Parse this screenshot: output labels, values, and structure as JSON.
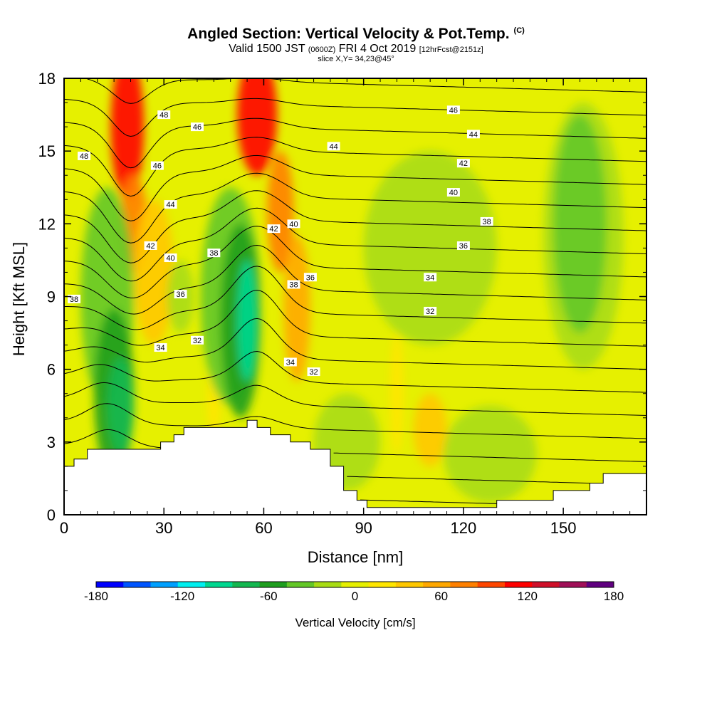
{
  "title": {
    "main": "Angled Section: Vertical Velocity & Pot.Temp.",
    "unit_tag": "(C)",
    "valid_prefix": "Valid 1500 JST",
    "valid_zulu": "(0600Z)",
    "valid_date": "FRI 4 Oct 2019",
    "forecast": "[12hrFcst@2151z]",
    "slice": "slice X,Y= 34,23@45°"
  },
  "chart_data": {
    "type": "heatmap",
    "xlabel": "Distance [nm]",
    "ylabel": "Height [Kft MSL]",
    "xlim": [
      0,
      175
    ],
    "ylim": [
      0,
      18
    ],
    "x_ticks": [
      0,
      30,
      60,
      90,
      120,
      150
    ],
    "y_ticks": [
      0,
      3,
      6,
      9,
      12,
      15,
      18
    ],
    "colorbar": {
      "label": "Vertical Velocity [cm/s]",
      "min": -180,
      "max": 180,
      "step": 20,
      "tick_values": [
        -180,
        -120,
        -60,
        0,
        60,
        120,
        180
      ],
      "colors": [
        "#0000ff",
        "#0055ff",
        "#00a0ff",
        "#00f0f0",
        "#00d890",
        "#14b850",
        "#1e9e1e",
        "#64c828",
        "#a8dc14",
        "#e6f000",
        "#ffe600",
        "#ffc800",
        "#ffa800",
        "#ff8000",
        "#ff4600",
        "#ff0000",
        "#d0102a",
        "#a01058",
        "#600080"
      ]
    },
    "terrain_kft": [
      {
        "x": 0,
        "h": 2.0
      },
      {
        "x": 3,
        "h": 2.3
      },
      {
        "x": 7,
        "h": 2.7
      },
      {
        "x": 26,
        "h": 2.7
      },
      {
        "x": 29,
        "h": 3.0
      },
      {
        "x": 33,
        "h": 3.3
      },
      {
        "x": 36,
        "h": 3.6
      },
      {
        "x": 52,
        "h": 3.6
      },
      {
        "x": 55,
        "h": 3.9
      },
      {
        "x": 58,
        "h": 3.6
      },
      {
        "x": 62,
        "h": 3.3
      },
      {
        "x": 68,
        "h": 3.0
      },
      {
        "x": 74,
        "h": 2.7
      },
      {
        "x": 80,
        "h": 2.0
      },
      {
        "x": 84,
        "h": 1.0
      },
      {
        "x": 88,
        "h": 0.6
      },
      {
        "x": 91,
        "h": 0.3
      },
      {
        "x": 126,
        "h": 0.3
      },
      {
        "x": 130,
        "h": 0.6
      },
      {
        "x": 143,
        "h": 0.6
      },
      {
        "x": 147,
        "h": 1.0
      },
      {
        "x": 158,
        "h": 1.3
      },
      {
        "x": 162,
        "h": 1.7
      },
      {
        "x": 175,
        "h": 1.7
      }
    ],
    "velocity_features": [
      {
        "x": 19,
        "y": 16.0,
        "rx": 5,
        "ry": 3.0,
        "value": 120
      },
      {
        "x": 21,
        "y": 12.0,
        "rx": 4,
        "ry": 2.0,
        "value": 80
      },
      {
        "x": 27,
        "y": 10.0,
        "rx": 6,
        "ry": 3.0,
        "value": 40
      },
      {
        "x": 58,
        "y": 16.5,
        "rx": 6,
        "ry": 2.5,
        "value": 120
      },
      {
        "x": 65,
        "y": 12.5,
        "rx": 4,
        "ry": 2.5,
        "value": 80
      },
      {
        "x": 70,
        "y": 8.5,
        "rx": 4,
        "ry": 3.0,
        "value": 60
      },
      {
        "x": 110,
        "y": 3.5,
        "rx": 5,
        "ry": 1.5,
        "value": 40
      },
      {
        "x": 100,
        "y": 5.0,
        "rx": 2,
        "ry": 2.5,
        "value": 20
      },
      {
        "x": 45,
        "y": 5.0,
        "rx": 2,
        "ry": 2.0,
        "value": 20
      },
      {
        "x": 13,
        "y": 9.0,
        "rx": 8,
        "ry": 4.5,
        "value": -40
      },
      {
        "x": 15,
        "y": 5.0,
        "rx": 6,
        "ry": 3.5,
        "value": -60
      },
      {
        "x": 17,
        "y": 4.5,
        "rx": 4,
        "ry": 2.0,
        "value": -80
      },
      {
        "x": 50,
        "y": 9.0,
        "rx": 9,
        "ry": 4.5,
        "value": -40
      },
      {
        "x": 53,
        "y": 8.0,
        "rx": 6,
        "ry": 4.0,
        "value": -60
      },
      {
        "x": 55,
        "y": 8.0,
        "rx": 3,
        "ry": 2.5,
        "value": -100
      },
      {
        "x": 35,
        "y": 9.0,
        "rx": 4,
        "ry": 1.5,
        "value": -20
      },
      {
        "x": 156,
        "y": 11.5,
        "rx": 12,
        "ry": 5.5,
        "value": -20
      },
      {
        "x": 155,
        "y": 12.0,
        "rx": 8,
        "ry": 4.5,
        "value": -40
      },
      {
        "x": 110,
        "y": 11.0,
        "rx": 20,
        "ry": 4.0,
        "value": -20
      },
      {
        "x": 85,
        "y": 3.0,
        "rx": 10,
        "ry": 2.0,
        "value": -20
      },
      {
        "x": 128,
        "y": 2.5,
        "rx": 14,
        "ry": 2.0,
        "value": -20
      }
    ],
    "isotherm_labels": [
      {
        "text": "48",
        "x": 30,
        "y": 16.5
      },
      {
        "text": "48",
        "x": 6,
        "y": 14.8
      },
      {
        "text": "46",
        "x": 40,
        "y": 16.0
      },
      {
        "text": "46",
        "x": 28,
        "y": 14.4
      },
      {
        "text": "46",
        "x": 117,
        "y": 16.7
      },
      {
        "text": "44",
        "x": 32,
        "y": 12.8
      },
      {
        "text": "44",
        "x": 81,
        "y": 15.2
      },
      {
        "text": "44",
        "x": 123,
        "y": 15.7
      },
      {
        "text": "42",
        "x": 26,
        "y": 11.1
      },
      {
        "text": "42",
        "x": 63,
        "y": 11.8
      },
      {
        "text": "42",
        "x": 120,
        "y": 14.5
      },
      {
        "text": "40",
        "x": 32,
        "y": 10.6
      },
      {
        "text": "40",
        "x": 69,
        "y": 12.0
      },
      {
        "text": "40",
        "x": 117,
        "y": 13.3
      },
      {
        "text": "38",
        "x": 45,
        "y": 10.8
      },
      {
        "text": "38",
        "x": 69,
        "y": 9.5
      },
      {
        "text": "38",
        "x": 127,
        "y": 12.1
      },
      {
        "text": "38",
        "x": 3,
        "y": 8.9
      },
      {
        "text": "36",
        "x": 35,
        "y": 9.1
      },
      {
        "text": "36",
        "x": 74,
        "y": 9.8
      },
      {
        "text": "36",
        "x": 120,
        "y": 11.1
      },
      {
        "text": "34",
        "x": 29,
        "y": 6.9
      },
      {
        "text": "34",
        "x": 68,
        "y": 6.3
      },
      {
        "text": "34",
        "x": 110,
        "y": 9.8
      },
      {
        "text": "32",
        "x": 40,
        "y": 7.2
      },
      {
        "text": "32",
        "x": 75,
        "y": 5.9
      },
      {
        "text": "32",
        "x": 110,
        "y": 8.4
      }
    ]
  },
  "axes": {
    "x_tick_labels": [
      "0",
      "30",
      "60",
      "90",
      "120",
      "150"
    ],
    "y_tick_labels": [
      "0",
      "3",
      "6",
      "9",
      "12",
      "15",
      "18"
    ]
  }
}
